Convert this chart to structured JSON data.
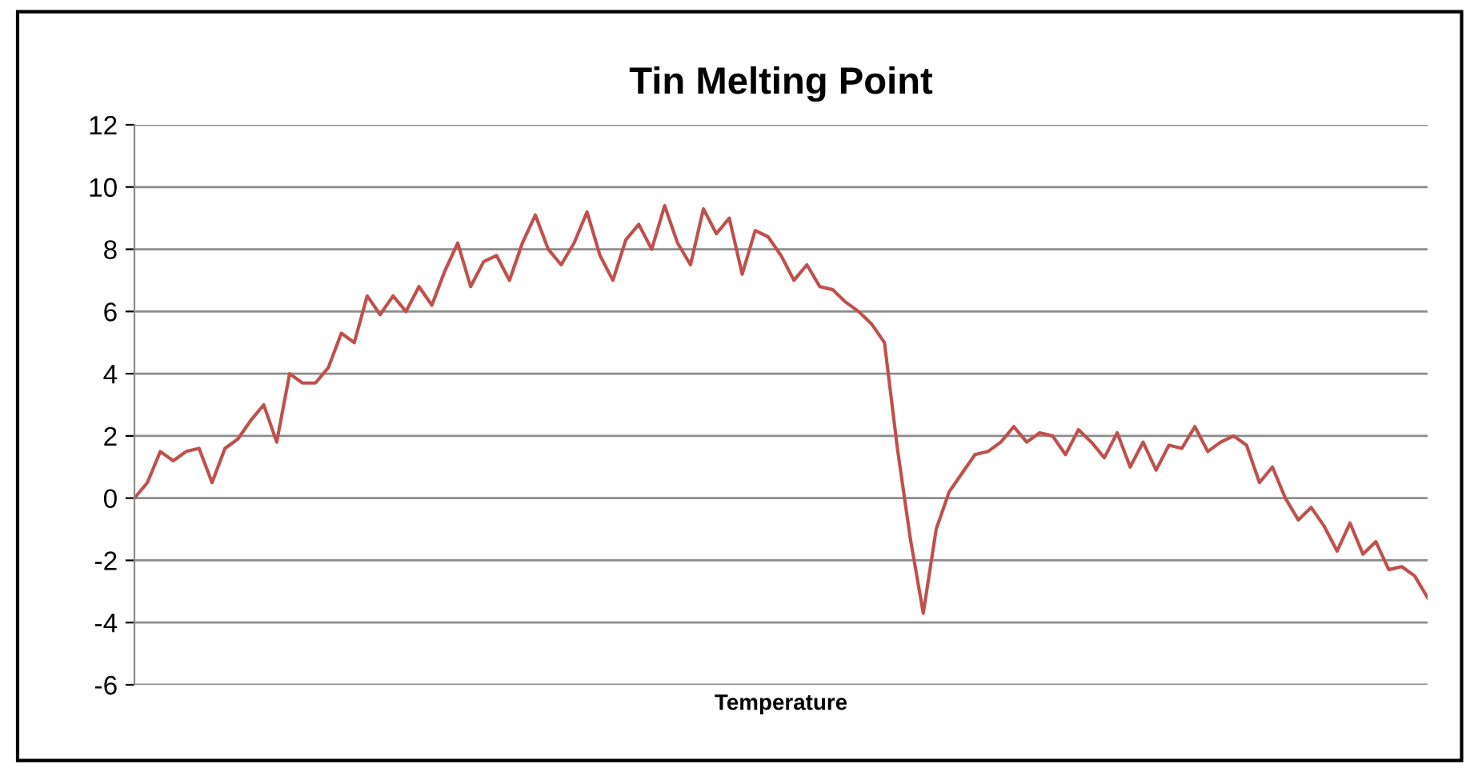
{
  "chart_data": {
    "type": "line",
    "title": "Tin Melting Point",
    "xlabel": "Temperature",
    "categories": [
      null,
      null,
      null,
      null,
      null,
      null,
      null,
      null,
      null,
      null,
      null,
      null,
      null,
      null,
      null,
      null,
      null,
      null,
      null,
      null,
      null,
      null,
      null,
      null,
      null,
      null,
      null,
      null,
      null,
      null,
      null,
      null,
      null,
      null,
      null,
      null,
      null,
      null,
      null,
      null,
      null,
      null,
      null,
      null,
      null,
      null,
      null,
      null,
      null,
      null,
      null,
      null,
      null,
      null,
      null,
      null,
      null,
      null,
      null,
      null,
      null,
      null,
      null,
      null,
      null,
      null,
      null,
      null,
      null,
      null,
      null,
      null,
      null,
      null,
      null,
      null,
      null,
      null,
      null,
      null,
      null,
      null,
      null,
      null,
      null,
      null,
      null,
      null,
      null,
      null,
      null,
      null,
      null,
      null,
      null,
      null,
      null,
      null,
      null,
      null,
      null
    ],
    "series": [
      {
        "color": "#c0504d",
        "values": [
          0,
          0.5,
          1.5,
          1.2,
          1.5,
          1.6,
          0.5,
          1.6,
          1.9,
          2.5,
          3.0,
          1.8,
          4.0,
          3.7,
          3.7,
          4.2,
          5.3,
          5.0,
          6.5,
          5.9,
          6.5,
          6.0,
          6.8,
          6.2,
          7.3,
          8.2,
          6.8,
          7.6,
          7.8,
          7.0,
          8.2,
          9.1,
          8.0,
          7.5,
          8.2,
          9.2,
          7.8,
          7.0,
          8.3,
          8.8,
          8.0,
          9.4,
          8.2,
          7.5,
          9.3,
          8.5,
          9.0,
          7.2,
          8.6,
          8.4,
          7.8,
          7.0,
          7.5,
          6.8,
          6.7,
          6.3,
          6.0,
          5.6,
          5.0,
          1.6,
          -1.3,
          -3.7,
          -1.0,
          0.2,
          0.8,
          1.4,
          1.5,
          1.8,
          2.3,
          1.8,
          2.1,
          2.0,
          1.4,
          2.2,
          1.8,
          1.3,
          2.1,
          1.0,
          1.8,
          0.9,
          1.7,
          1.6,
          2.3,
          1.5,
          1.8,
          2.0,
          1.7,
          0.5,
          1.0,
          0,
          -0.7,
          -0.3,
          -0.9,
          -1.7,
          -0.8,
          -1.8,
          -1.4,
          -2.3,
          -2.2,
          -2.5,
          -3.2
        ]
      }
    ],
    "ylim": [
      -6,
      12
    ],
    "yticks": [
      -6,
      -4,
      -2,
      0,
      2,
      4,
      6,
      8,
      10,
      12
    ],
    "grid": "y",
    "tick_labels": "y",
    "marker": "none",
    "line_style": "solid"
  }
}
